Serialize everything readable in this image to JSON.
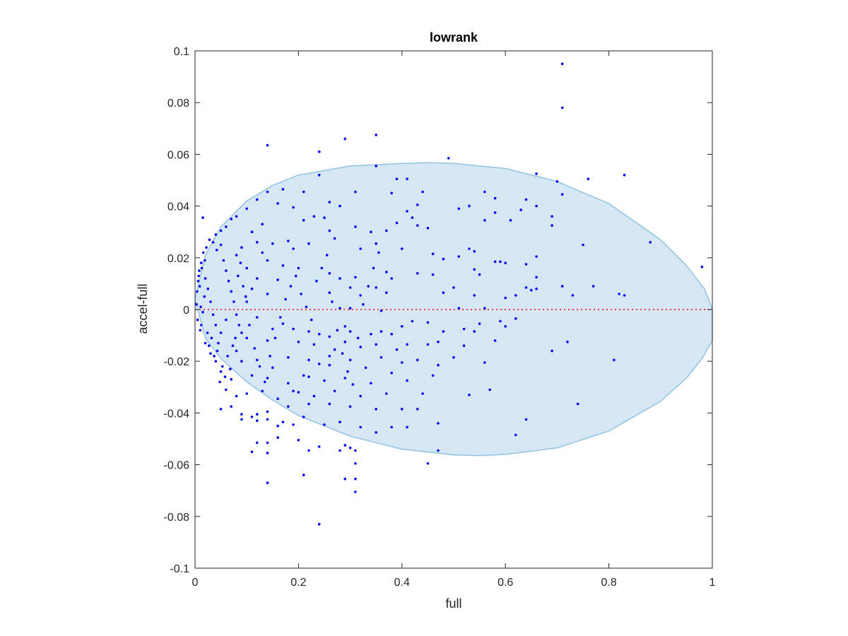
{
  "chart_data": {
    "type": "scatter",
    "title": "lowrank",
    "xlabel": "full",
    "ylabel": "accel-full",
    "xlim": [
      0,
      1
    ],
    "ylim": [
      -0.1,
      0.1
    ],
    "xticks": [
      "0",
      "0.2",
      "0.4",
      "0.6",
      "0.8",
      "1"
    ],
    "yticks": [
      "-0.1",
      "-0.08",
      "-0.06",
      "-0.04",
      "-0.02",
      "0",
      "0.02",
      "0.04",
      "0.06",
      "0.08",
      "0.1"
    ],
    "grid": false,
    "colors": {
      "points": "#0000ff",
      "region_fill": "#d5e7f4",
      "region_edge": "#92c3e3",
      "reference_line": "#ff0000"
    },
    "reference_line": {
      "y": 0,
      "style": "dotted"
    },
    "region": {
      "type": "ellipse",
      "outline": [
        [
          0,
          0.004
        ],
        [
          0.02,
          0.021
        ],
        [
          0.05,
          0.032
        ],
        [
          0.1,
          0.042
        ],
        [
          0.15,
          0.048
        ],
        [
          0.2,
          0.052
        ],
        [
          0.3,
          0.0555
        ],
        [
          0.4,
          0.0565
        ],
        [
          0.45,
          0.0568
        ],
        [
          0.5,
          0.0565
        ],
        [
          0.6,
          0.0545
        ],
        [
          0.7,
          0.0495
        ],
        [
          0.8,
          0.041
        ],
        [
          0.9,
          0.027
        ],
        [
          0.95,
          0.017
        ],
        [
          0.985,
          0.008
        ],
        [
          1.0,
          0.0
        ],
        [
          1.0,
          -0.012
        ],
        [
          0.98,
          -0.019
        ],
        [
          0.95,
          -0.0265
        ],
        [
          0.9,
          -0.0355
        ],
        [
          0.8,
          -0.047
        ],
        [
          0.7,
          -0.0535
        ],
        [
          0.6,
          -0.056
        ],
        [
          0.55,
          -0.0565
        ],
        [
          0.5,
          -0.0562
        ],
        [
          0.4,
          -0.054
        ],
        [
          0.3,
          -0.049
        ],
        [
          0.2,
          -0.041
        ],
        [
          0.15,
          -0.035
        ],
        [
          0.1,
          -0.028
        ],
        [
          0.05,
          -0.019
        ],
        [
          0.02,
          -0.011
        ],
        [
          0,
          0.004
        ]
      ]
    },
    "points": [
      [
        0.71,
        0.095
      ],
      [
        0.71,
        0.078
      ],
      [
        0.14,
        0.0635
      ],
      [
        0.24,
        0.061
      ],
      [
        0.29,
        0.066
      ],
      [
        0.35,
        0.0675
      ],
      [
        0.49,
        0.0585
      ],
      [
        0.35,
        0.0555
      ],
      [
        0.24,
        0.052
      ],
      [
        0.39,
        0.0505
      ],
      [
        0.41,
        0.0505
      ],
      [
        0.66,
        0.0525
      ],
      [
        0.7,
        0.0495
      ],
      [
        0.76,
        0.0505
      ],
      [
        0.83,
        0.052
      ],
      [
        0.14,
        0.0455
      ],
      [
        0.17,
        0.0465
      ],
      [
        0.21,
        0.0455
      ],
      [
        0.31,
        0.0455
      ],
      [
        0.38,
        0.045
      ],
      [
        0.44,
        0.0455
      ],
      [
        0.56,
        0.0455
      ],
      [
        0.71,
        0.0445
      ],
      [
        0.64,
        0.0425
      ],
      [
        0.58,
        0.043
      ],
      [
        0.12,
        0.0425
      ],
      [
        0.16,
        0.041
      ],
      [
        0.19,
        0.0395
      ],
      [
        0.26,
        0.0415
      ],
      [
        0.28,
        0.04
      ],
      [
        0.43,
        0.0405
      ],
      [
        0.51,
        0.039
      ],
      [
        0.53,
        0.04
      ],
      [
        0.63,
        0.0385
      ],
      [
        0.66,
        0.04
      ],
      [
        0.58,
        0.0375
      ],
      [
        0.41,
        0.038
      ],
      [
        0.56,
        0.0345
      ],
      [
        0.69,
        0.036
      ],
      [
        0.1,
        0.039
      ],
      [
        0.08,
        0.036
      ],
      [
        0.07,
        0.035
      ],
      [
        0.015,
        0.0355
      ],
      [
        0.23,
        0.036
      ],
      [
        0.25,
        0.0355
      ],
      [
        0.42,
        0.0355
      ],
      [
        0.43,
        0.0325
      ],
      [
        0.45,
        0.0315
      ],
      [
        0.39,
        0.0335
      ],
      [
        0.31,
        0.032
      ],
      [
        0.34,
        0.03
      ],
      [
        0.26,
        0.0305
      ],
      [
        0.21,
        0.0345
      ],
      [
        0.69,
        0.0325
      ],
      [
        0.61,
        0.0345
      ],
      [
        0.37,
        0.0305
      ],
      [
        0.05,
        0.0305
      ],
      [
        0.04,
        0.029
      ],
      [
        0.06,
        0.032
      ],
      [
        0.11,
        0.03
      ],
      [
        0.13,
        0.033
      ],
      [
        0.35,
        0.0255
      ],
      [
        0.22,
        0.0255
      ],
      [
        0.18,
        0.0265
      ],
      [
        0.15,
        0.0255
      ],
      [
        0.27,
        0.0275
      ],
      [
        0.19,
        0.0235
      ],
      [
        0.13,
        0.022
      ],
      [
        0.32,
        0.0235
      ],
      [
        0.4,
        0.0235
      ],
      [
        0.46,
        0.0215
      ],
      [
        0.53,
        0.0235
      ],
      [
        0.54,
        0.0225
      ],
      [
        0.75,
        0.025
      ],
      [
        0.88,
        0.026
      ],
      [
        0.98,
        0.0165
      ],
      [
        0.66,
        0.0205
      ],
      [
        0.51,
        0.0205
      ],
      [
        0.48,
        0.0195
      ],
      [
        0.58,
        0.0185
      ],
      [
        0.59,
        0.0185
      ],
      [
        0.6,
        0.018
      ],
      [
        0.64,
        0.0175
      ],
      [
        0.66,
        0.0125
      ],
      [
        0.54,
        0.0155
      ],
      [
        0.55,
        0.0135
      ],
      [
        0.46,
        0.0135
      ],
      [
        0.43,
        0.014
      ],
      [
        0.37,
        0.0145
      ],
      [
        0.38,
        0.012
      ],
      [
        0.31,
        0.0125
      ],
      [
        0.28,
        0.012
      ],
      [
        0.26,
        0.014
      ],
      [
        0.2,
        0.016
      ],
      [
        0.17,
        0.017
      ],
      [
        0.16,
        0.0115
      ],
      [
        0.64,
        0.0085
      ],
      [
        0.65,
        0.0075
      ],
      [
        0.66,
        0.008
      ],
      [
        0.71,
        0.009
      ],
      [
        0.73,
        0.0055
      ],
      [
        0.77,
        0.009
      ],
      [
        0.82,
        0.006
      ],
      [
        0.83,
        0.0055
      ],
      [
        0.62,
        0.0055
      ],
      [
        0.6,
        0.0045
      ],
      [
        0.54,
        0.0055
      ],
      [
        0.5,
        0.0085
      ],
      [
        0.48,
        0.0065
      ],
      [
        0.37,
        0.0065
      ],
      [
        0.35,
        0.0085
      ],
      [
        0.32,
        0.0055
      ],
      [
        0.3,
        0.0085
      ],
      [
        0.26,
        0.0065
      ],
      [
        0.56,
        0.0005
      ],
      [
        0.51,
        0.0005
      ],
      [
        0.36,
        -0.0005
      ],
      [
        0.3,
        0.0005
      ],
      [
        0.28,
        0.0005
      ],
      [
        0.62,
        -0.0035
      ],
      [
        0.59,
        -0.0045
      ],
      [
        0.55,
        -0.0055
      ],
      [
        0.6,
        -0.0065
      ],
      [
        0.54,
        -0.0085
      ],
      [
        0.52,
        -0.0075
      ],
      [
        0.48,
        -0.0085
      ],
      [
        0.45,
        -0.005
      ],
      [
        0.42,
        -0.0045
      ],
      [
        0.4,
        -0.0065
      ],
      [
        0.38,
        -0.0095
      ],
      [
        0.36,
        -0.0085
      ],
      [
        0.34,
        -0.0095
      ],
      [
        0.3,
        -0.0085
      ],
      [
        0.29,
        -0.0065
      ],
      [
        0.26,
        -0.0105
      ],
      [
        0.24,
        -0.0095
      ],
      [
        0.22,
        -0.0085
      ],
      [
        0.19,
        -0.0075
      ],
      [
        0.17,
        -0.0055
      ],
      [
        0.15,
        -0.0075
      ],
      [
        0.58,
        -0.012
      ],
      [
        0.52,
        -0.014
      ],
      [
        0.47,
        -0.0125
      ],
      [
        0.45,
        -0.0135
      ],
      [
        0.41,
        -0.0135
      ],
      [
        0.39,
        -0.0155
      ],
      [
        0.35,
        -0.0135
      ],
      [
        0.32,
        -0.0145
      ],
      [
        0.29,
        -0.0125
      ],
      [
        0.27,
        -0.0155
      ],
      [
        0.23,
        -0.0135
      ],
      [
        0.2,
        -0.0125
      ],
      [
        0.69,
        -0.016
      ],
      [
        0.72,
        -0.0125
      ],
      [
        0.81,
        -0.0195
      ],
      [
        0.56,
        -0.0205
      ],
      [
        0.5,
        -0.0185
      ],
      [
        0.47,
        -0.0215
      ],
      [
        0.43,
        -0.0195
      ],
      [
        0.4,
        -0.0205
      ],
      [
        0.36,
        -0.0185
      ],
      [
        0.33,
        -0.0225
      ],
      [
        0.3,
        -0.0195
      ],
      [
        0.26,
        -0.0215
      ],
      [
        0.22,
        -0.0195
      ],
      [
        0.18,
        -0.0185
      ],
      [
        0.15,
        -0.0225
      ],
      [
        0.12,
        -0.0195
      ],
      [
        0.46,
        -0.0255
      ],
      [
        0.41,
        -0.0275
      ],
      [
        0.38,
        -0.0245
      ],
      [
        0.34,
        -0.0285
      ],
      [
        0.29,
        -0.0265
      ],
      [
        0.25,
        -0.0275
      ],
      [
        0.21,
        -0.0255
      ],
      [
        0.18,
        -0.0285
      ],
      [
        0.14,
        -0.0265
      ],
      [
        0.11,
        -0.0255
      ],
      [
        0.57,
        -0.031
      ],
      [
        0.53,
        -0.033
      ],
      [
        0.44,
        -0.0325
      ],
      [
        0.37,
        -0.0325
      ],
      [
        0.32,
        -0.0335
      ],
      [
        0.27,
        -0.0315
      ],
      [
        0.23,
        -0.0335
      ],
      [
        0.19,
        -0.0315
      ],
      [
        0.16,
        -0.0345
      ],
      [
        0.13,
        -0.0315
      ],
      [
        0.1,
        -0.0325
      ],
      [
        0.08,
        -0.0335
      ],
      [
        0.74,
        -0.0365
      ],
      [
        0.64,
        -0.0425
      ],
      [
        0.47,
        -0.044
      ],
      [
        0.43,
        -0.0385
      ],
      [
        0.4,
        -0.0385
      ],
      [
        0.35,
        -0.0385
      ],
      [
        0.3,
        -0.0375
      ],
      [
        0.26,
        -0.0365
      ],
      [
        0.22,
        -0.0365
      ],
      [
        0.18,
        -0.0375
      ],
      [
        0.14,
        -0.0395
      ],
      [
        0.12,
        -0.0405
      ],
      [
        0.09,
        -0.0405
      ],
      [
        0.07,
        -0.0375
      ],
      [
        0.05,
        -0.0385
      ],
      [
        0.62,
        -0.0485
      ],
      [
        0.47,
        -0.0545
      ],
      [
        0.45,
        -0.0595
      ],
      [
        0.41,
        -0.0455
      ],
      [
        0.38,
        -0.0455
      ],
      [
        0.35,
        -0.0475
      ],
      [
        0.32,
        -0.0455
      ],
      [
        0.28,
        -0.0435
      ],
      [
        0.25,
        -0.0445
      ],
      [
        0.21,
        -0.0415
      ],
      [
        0.19,
        -0.0445
      ],
      [
        0.17,
        -0.0435
      ],
      [
        0.14,
        -0.0425
      ],
      [
        0.11,
        -0.0415
      ],
      [
        0.09,
        -0.0425
      ],
      [
        0.16,
        -0.0495
      ],
      [
        0.12,
        -0.0515
      ],
      [
        0.14,
        -0.0515
      ],
      [
        0.2,
        -0.0505
      ],
      [
        0.22,
        -0.0545
      ],
      [
        0.24,
        -0.053
      ],
      [
        0.29,
        -0.0525
      ],
      [
        0.3,
        -0.0535
      ],
      [
        0.31,
        -0.0545
      ],
      [
        0.28,
        -0.0545
      ],
      [
        0.11,
        -0.055
      ],
      [
        0.14,
        -0.0555
      ],
      [
        0.21,
        -0.064
      ],
      [
        0.29,
        -0.0655
      ],
      [
        0.31,
        -0.0595
      ],
      [
        0.31,
        -0.0655
      ],
      [
        0.31,
        -0.0705
      ],
      [
        0.14,
        -0.067
      ],
      [
        0.24,
        -0.083
      ],
      [
        0.12,
        -0.043
      ],
      [
        0.16,
        -0.045
      ],
      [
        0.22,
        -0.026
      ],
      [
        0.2,
        -0.032
      ],
      [
        0.24,
        -0.021
      ],
      [
        0.26,
        -0.018
      ],
      [
        0.08,
        0.021
      ],
      [
        0.09,
        0.024
      ],
      [
        0.12,
        0.026
      ],
      [
        0.14,
        0.019
      ],
      [
        0.1,
        0.016
      ],
      [
        0.12,
        0.012
      ],
      [
        0.11,
        0.008
      ],
      [
        0.14,
        0.006
      ],
      [
        0.1,
        0.003
      ],
      [
        0.12,
        -0.003
      ],
      [
        0.14,
        -0.012
      ],
      [
        0.1,
        -0.011
      ],
      [
        0.08,
        -0.016
      ],
      [
        0.09,
        -0.02
      ],
      [
        0.07,
        -0.027
      ],
      [
        0.06,
        -0.031
      ],
      [
        0.05,
        -0.024
      ],
      [
        0.04,
        -0.02
      ],
      [
        0.03,
        -0.017
      ],
      [
        0.02,
        -0.013
      ],
      [
        0.01,
        -0.008
      ],
      [
        0.005,
        -0.004
      ],
      [
        0.003,
        0.002
      ],
      [
        0.004,
        0.007
      ],
      [
        0.006,
        0.011
      ],
      [
        0.008,
        0.015
      ],
      [
        0.012,
        0.018
      ],
      [
        0.016,
        0.022
      ],
      [
        0.022,
        0.024
      ],
      [
        0.028,
        0.027
      ],
      [
        0.035,
        0.026
      ],
      [
        0.042,
        0.023
      ],
      [
        0.05,
        0.025
      ],
      [
        0.055,
        0.019
      ],
      [
        0.06,
        0.015
      ],
      [
        0.065,
        0.011
      ],
      [
        0.07,
        0.007
      ],
      [
        0.075,
        0.003
      ],
      [
        0.08,
        -0.002
      ],
      [
        0.085,
        -0.006
      ],
      [
        0.09,
        -0.009
      ],
      [
        0.06,
        -0.004
      ],
      [
        0.05,
        -0.009
      ],
      [
        0.045,
        -0.013
      ],
      [
        0.04,
        -0.006
      ],
      [
        0.035,
        -0.002
      ],
      [
        0.03,
        0.003
      ],
      [
        0.025,
        0.008
      ],
      [
        0.02,
        0.012
      ],
      [
        0.018,
        0.005
      ],
      [
        0.015,
        -0.001
      ],
      [
        0.012,
        -0.006
      ],
      [
        0.009,
        0.009
      ],
      [
        0.007,
        0.013
      ],
      [
        0.011,
        0.001
      ],
      [
        0.013,
        0.016
      ],
      [
        0.019,
        0.019
      ],
      [
        0.024,
        -0.009
      ],
      [
        0.027,
        -0.014
      ],
      [
        0.032,
        -0.011
      ],
      [
        0.037,
        -0.018
      ],
      [
        0.043,
        -0.016
      ],
      [
        0.048,
        -0.028
      ],
      [
        0.053,
        -0.022
      ],
      [
        0.058,
        -0.026
      ],
      [
        0.063,
        -0.018
      ],
      [
        0.068,
        -0.023
      ],
      [
        0.073,
        -0.014
      ],
      [
        0.078,
        -0.011
      ],
      [
        0.083,
        0.013
      ],
      [
        0.088,
        0.018
      ],
      [
        0.093,
        0.009
      ],
      [
        0.098,
        0.005
      ],
      [
        0.105,
        -0.006
      ],
      [
        0.115,
        -0.015
      ],
      [
        0.125,
        -0.022
      ],
      [
        0.135,
        -0.028
      ],
      [
        0.145,
        -0.018
      ],
      [
        0.155,
        -0.011
      ],
      [
        0.165,
        -0.003
      ],
      [
        0.175,
        0.004
      ],
      [
        0.185,
        0.009
      ],
      [
        0.195,
        0.013
      ],
      [
        0.205,
        0.006
      ],
      [
        0.215,
        0.001
      ],
      [
        0.225,
        -0.004
      ],
      [
        0.235,
        0.011
      ],
      [
        0.245,
        0.016
      ],
      [
        0.255,
        0.021
      ],
      [
        0.265,
        0.003
      ],
      [
        0.275,
        -0.008
      ],
      [
        0.285,
        -0.017
      ],
      [
        0.295,
        -0.024
      ],
      [
        0.305,
        -0.029
      ],
      [
        0.315,
        -0.011
      ],
      [
        0.325,
        0.002
      ],
      [
        0.335,
        0.009
      ],
      [
        0.345,
        0.016
      ],
      [
        0.355,
        0.022
      ]
    ]
  }
}
